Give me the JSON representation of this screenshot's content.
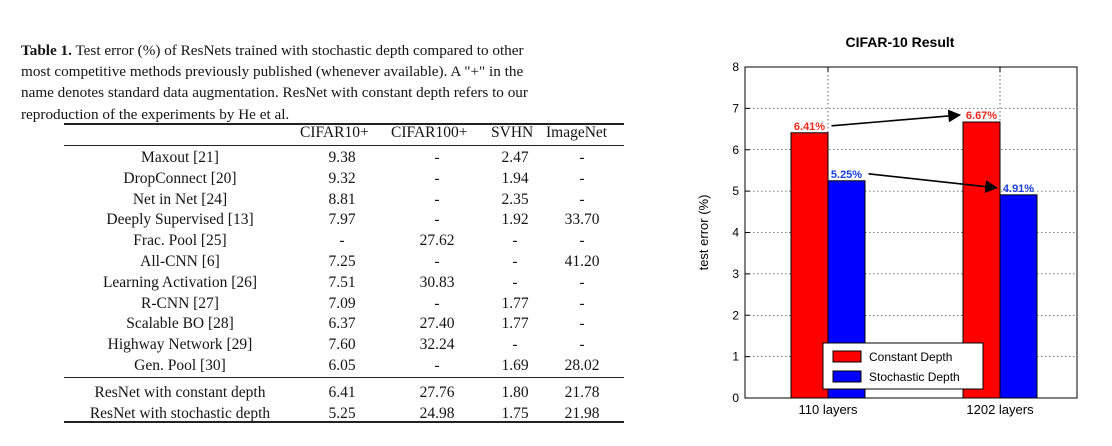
{
  "caption": {
    "label": "Table 1.",
    "lines": [
      " Test error (%) of ResNets trained with stochastic depth compared to other",
      "most competitive methods previously published (whenever available). A \"+\" in the",
      "name denotes standard data augmentation. ResNet with constant depth refers to our",
      "reproduction of the experiments by He et al."
    ]
  },
  "table": {
    "headers": [
      "CIFAR10+",
      "CIFAR100+",
      "SVHN",
      "ImageNet"
    ],
    "rows": [
      [
        "Maxout [21]",
        "9.38",
        "-",
        "2.47",
        "-"
      ],
      [
        "DropConnect [20]",
        "9.32",
        "-",
        "1.94",
        "-"
      ],
      [
        "Net in Net [24]",
        "8.81",
        "-",
        "2.35",
        "-"
      ],
      [
        "Deeply Supervised [13]",
        "7.97",
        "-",
        "1.92",
        "33.70"
      ],
      [
        "Frac. Pool [25]",
        "-",
        "27.62",
        "-",
        "-"
      ],
      [
        "All-CNN [6]",
        "7.25",
        "-",
        "-",
        "41.20"
      ],
      [
        "Learning Activation [26]",
        "7.51",
        "30.83",
        "-",
        "-"
      ],
      [
        "R-CNN [27]",
        "7.09",
        "-",
        "1.77",
        "-"
      ],
      [
        "Scalable BO [28]",
        "6.37",
        "27.40",
        "1.77",
        "-"
      ],
      [
        "Highway Network [29]",
        "7.60",
        "32.24",
        "-",
        "-"
      ],
      [
        "Gen. Pool [30]",
        "6.05",
        "-",
        "1.69",
        "28.02"
      ],
      [
        "ResNet with constant depth",
        "6.41",
        "27.76",
        "1.80",
        "21.78"
      ],
      [
        "ResNet with stochastic depth",
        "5.25",
        "24.98",
        "1.75",
        "21.98"
      ]
    ]
  },
  "chart_data": {
    "type": "bar",
    "title": "CIFAR-10 Result",
    "xlabel": "",
    "ylabel": "test error (%)",
    "categories": [
      "110 layers",
      "1202 layers"
    ],
    "ylim": [
      0,
      8
    ],
    "yticks": [
      "0",
      "1",
      "2",
      "3",
      "4",
      "5",
      "6",
      "7",
      "8"
    ],
    "grid": true,
    "legend_position": "bottom-right",
    "series": [
      {
        "name": "Constant Depth",
        "values": [
          6.41,
          6.67
        ],
        "labels": [
          "6.41%",
          "6.67%"
        ],
        "color": "#ff0000",
        "label_color": "#e8281e"
      },
      {
        "name": "Stochastic Depth",
        "values": [
          5.25,
          4.91
        ],
        "labels": [
          "5.25%",
          "4.91%"
        ],
        "color": "#0000ff",
        "label_color": "#1a3ee0"
      }
    ]
  }
}
